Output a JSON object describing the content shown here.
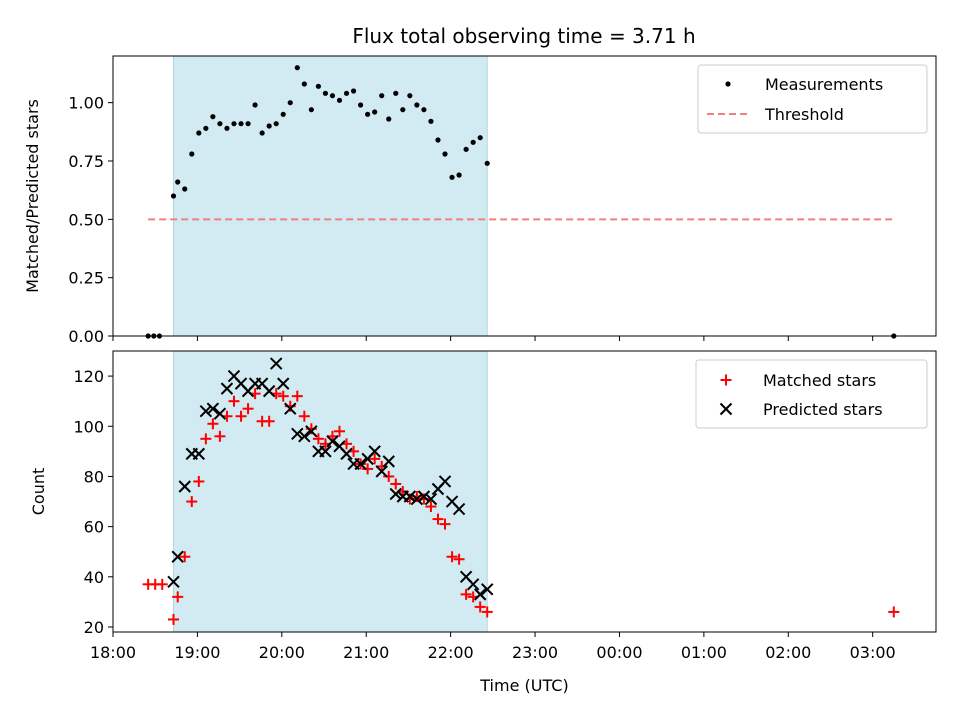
{
  "title": "Flux total observing time = 3.71 h",
  "xlabel": "Time (UTC)",
  "x_ticks": [
    "18:00",
    "19:00",
    "20:00",
    "21:00",
    "22:00",
    "23:00",
    "00:00",
    "01:00",
    "02:00",
    "03:00"
  ],
  "colors": {
    "shade": "#add8e6",
    "measurements": "#000000",
    "threshold": "#f08080",
    "matched": "#ff0000",
    "predicted": "#000000"
  },
  "chart_data": [
    {
      "type": "scatter",
      "ylabel": "Matched/Predicted stars",
      "xlim": [
        "18:00",
        "03:45"
      ],
      "ylim": [
        0,
        1.2
      ],
      "y_ticks": [
        "0.00",
        "0.25",
        "0.50",
        "0.75",
        "1.00"
      ],
      "shaded_span": [
        "18:43",
        "22:26"
      ],
      "legend": {
        "position": "top-right",
        "entries": [
          "Measurements",
          "Threshold"
        ]
      },
      "threshold": {
        "name": "Threshold",
        "y": 0.5,
        "x_range": [
          "18:25",
          "03:15"
        ],
        "style": "dashed"
      },
      "series": [
        {
          "name": "Measurements",
          "marker": "dot",
          "points": [
            [
              "18:25",
              0.0
            ],
            [
              "18:29",
              0.0
            ],
            [
              "18:33",
              0.0
            ],
            [
              "18:43",
              0.6
            ],
            [
              "18:46",
              0.66
            ],
            [
              "18:51",
              0.63
            ],
            [
              "18:56",
              0.78
            ],
            [
              "19:01",
              0.87
            ],
            [
              "19:06",
              0.89
            ],
            [
              "19:11",
              0.94
            ],
            [
              "19:16",
              0.91
            ],
            [
              "19:21",
              0.89
            ],
            [
              "19:26",
              0.91
            ],
            [
              "19:31",
              0.91
            ],
            [
              "19:36",
              0.91
            ],
            [
              "19:41",
              0.99
            ],
            [
              "19:46",
              0.87
            ],
            [
              "19:51",
              0.9
            ],
            [
              "19:56",
              0.91
            ],
            [
              "20:01",
              0.95
            ],
            [
              "20:06",
              1.0
            ],
            [
              "20:11",
              1.15
            ],
            [
              "20:16",
              1.08
            ],
            [
              "20:21",
              0.97
            ],
            [
              "20:26",
              1.07
            ],
            [
              "20:31",
              1.04
            ],
            [
              "20:36",
              1.03
            ],
            [
              "20:41",
              1.01
            ],
            [
              "20:46",
              1.04
            ],
            [
              "20:51",
              1.05
            ],
            [
              "20:56",
              0.99
            ],
            [
              "21:01",
              0.95
            ],
            [
              "21:06",
              0.96
            ],
            [
              "21:11",
              1.03
            ],
            [
              "21:16",
              0.93
            ],
            [
              "21:21",
              1.04
            ],
            [
              "21:26",
              0.97
            ],
            [
              "21:31",
              1.03
            ],
            [
              "21:36",
              0.99
            ],
            [
              "21:41",
              0.97
            ],
            [
              "21:46",
              0.92
            ],
            [
              "21:51",
              0.84
            ],
            [
              "21:56",
              0.78
            ],
            [
              "22:01",
              0.68
            ],
            [
              "22:06",
              0.69
            ],
            [
              "22:11",
              0.8
            ],
            [
              "22:16",
              0.83
            ],
            [
              "22:21",
              0.85
            ],
            [
              "22:26",
              0.74
            ],
            [
              "03:15",
              0.0
            ]
          ]
        }
      ]
    },
    {
      "type": "scatter",
      "ylabel": "Count",
      "xlim": [
        "18:00",
        "03:45"
      ],
      "ylim": [
        18,
        130
      ],
      "y_ticks": [
        "20",
        "40",
        "60",
        "80",
        "100",
        "120"
      ],
      "shaded_span": [
        "18:43",
        "22:26"
      ],
      "legend": {
        "position": "top-right",
        "entries": [
          "Matched stars",
          "Predicted stars"
        ]
      },
      "series": [
        {
          "name": "Matched stars",
          "marker": "plus",
          "points": [
            [
              "18:25",
              37
            ],
            [
              "18:30",
              37
            ],
            [
              "18:35",
              37
            ],
            [
              "18:43",
              23
            ],
            [
              "18:46",
              32
            ],
            [
              "18:51",
              48
            ],
            [
              "18:56",
              70
            ],
            [
              "19:01",
              78
            ],
            [
              "19:06",
              95
            ],
            [
              "19:11",
              101
            ],
            [
              "19:16",
              96
            ],
            [
              "19:21",
              104
            ],
            [
              "19:26",
              110
            ],
            [
              "19:31",
              104
            ],
            [
              "19:36",
              107
            ],
            [
              "19:41",
              113
            ],
            [
              "19:46",
              102
            ],
            [
              "19:51",
              102
            ],
            [
              "19:56",
              113
            ],
            [
              "20:01",
              112
            ],
            [
              "20:06",
              108
            ],
            [
              "20:11",
              112
            ],
            [
              "20:16",
              104
            ],
            [
              "20:21",
              99
            ],
            [
              "20:26",
              95
            ],
            [
              "20:31",
              93
            ],
            [
              "20:36",
              96
            ],
            [
              "20:41",
              98
            ],
            [
              "20:46",
              93
            ],
            [
              "20:51",
              90
            ],
            [
              "20:56",
              85
            ],
            [
              "21:01",
              83
            ],
            [
              "21:06",
              87
            ],
            [
              "21:11",
              84
            ],
            [
              "21:16",
              80
            ],
            [
              "21:21",
              77
            ],
            [
              "21:26",
              74
            ],
            [
              "21:31",
              71
            ],
            [
              "21:36",
              72
            ],
            [
              "21:41",
              71
            ],
            [
              "21:46",
              68
            ],
            [
              "21:51",
              63
            ],
            [
              "21:56",
              61
            ],
            [
              "22:01",
              48
            ],
            [
              "22:06",
              47
            ],
            [
              "22:11",
              33
            ],
            [
              "22:16",
              32
            ],
            [
              "22:21",
              28
            ],
            [
              "22:26",
              26
            ],
            [
              "03:15",
              26
            ]
          ]
        },
        {
          "name": "Predicted stars",
          "marker": "x",
          "points": [
            [
              "18:43",
              38
            ],
            [
              "18:46",
              48
            ],
            [
              "18:51",
              76
            ],
            [
              "18:56",
              89
            ],
            [
              "19:01",
              89
            ],
            [
              "19:06",
              106
            ],
            [
              "19:11",
              107
            ],
            [
              "19:16",
              105
            ],
            [
              "19:21",
              115
            ],
            [
              "19:26",
              120
            ],
            [
              "19:31",
              117
            ],
            [
              "19:36",
              114
            ],
            [
              "19:41",
              117
            ],
            [
              "19:46",
              117
            ],
            [
              "19:51",
              114
            ],
            [
              "19:56",
              125
            ],
            [
              "20:01",
              117
            ],
            [
              "20:06",
              107
            ],
            [
              "20:11",
              97
            ],
            [
              "20:16",
              96
            ],
            [
              "20:21",
              98
            ],
            [
              "20:26",
              90
            ],
            [
              "20:31",
              90
            ],
            [
              "20:36",
              94
            ],
            [
              "20:41",
              92
            ],
            [
              "20:46",
              89
            ],
            [
              "20:51",
              85
            ],
            [
              "20:56",
              85
            ],
            [
              "21:01",
              87
            ],
            [
              "21:06",
              90
            ],
            [
              "21:11",
              82
            ],
            [
              "21:16",
              86
            ],
            [
              "21:21",
              73
            ],
            [
              "21:26",
              72
            ],
            [
              "21:31",
              72
            ],
            [
              "21:36",
              71
            ],
            [
              "21:41",
              72
            ],
            [
              "21:46",
              71
            ],
            [
              "21:51",
              75
            ],
            [
              "21:56",
              78
            ],
            [
              "22:01",
              70
            ],
            [
              "22:06",
              67
            ],
            [
              "22:11",
              40
            ],
            [
              "22:16",
              37
            ],
            [
              "22:21",
              33
            ],
            [
              "22:26",
              35
            ]
          ]
        }
      ]
    }
  ]
}
